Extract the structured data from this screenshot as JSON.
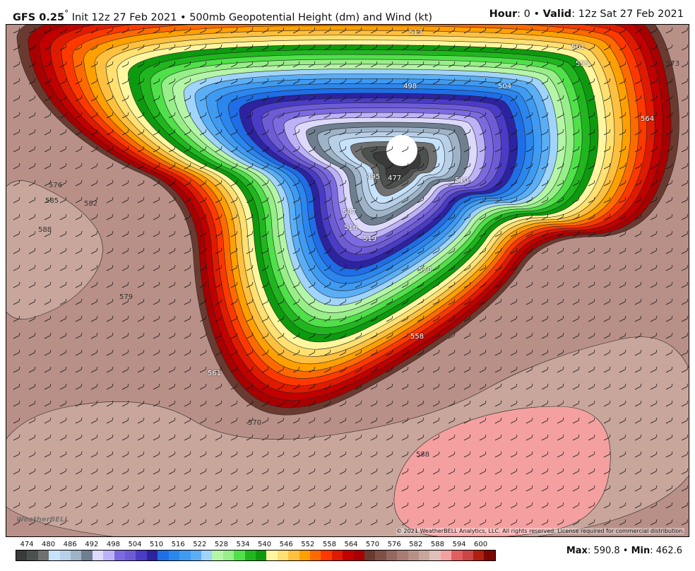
{
  "header": {
    "model": "GFS 0.25",
    "degree": "°",
    "init": " Init 12z 27 Feb 2021 • 500mb Geopotential Height (dm) and Wind (kt)",
    "hour_label": "Hour",
    "hour": ": 0 • ",
    "valid_label": "Valid",
    "valid": ": 12z Sat 27 Feb 2021"
  },
  "map": {
    "copyright": "© 2021 WeatherBELL Analytics, LLC. All rights reserved. License required for commercial distribution.",
    "logo": "WeatherBELL",
    "contour_labels": [
      "588",
      "585",
      "582",
      "576",
      "579",
      "570",
      "561",
      "558",
      "573",
      "564",
      "561",
      "555",
      "507",
      "516",
      "519",
      "495",
      "477",
      "504",
      "510",
      "513",
      "498",
      "570",
      "588"
    ],
    "low_center_color": "#ffffff"
  },
  "colorbar": {
    "labels": [
      "474",
      "480",
      "486",
      "492",
      "498",
      "504",
      "510",
      "516",
      "522",
      "528",
      "534",
      "540",
      "546",
      "552",
      "558",
      "564",
      "570",
      "576",
      "582",
      "588",
      "594",
      "600"
    ],
    "colors": [
      "#3a3a3a",
      "#4c514e",
      "#707070",
      "#c7e2fb",
      "#b8cfe8",
      "#9fb3c8",
      "#6f7f90",
      "#ddd9fb",
      "#bdb2f7",
      "#7b6ae0",
      "#6e5cd6",
      "#4a3cc6",
      "#2d22a0",
      "#1f6ee8",
      "#2b86ee",
      "#3f9af2",
      "#5aaef5",
      "#a0d4fa",
      "#b5f5a8",
      "#98ee88",
      "#50e04a",
      "#21b61f",
      "#0d9a0e",
      "#fff7a0",
      "#ffe070",
      "#ffc040",
      "#ffa000",
      "#ff6a00",
      "#ff3800",
      "#e01a00",
      "#c20000",
      "#a80000",
      "#6a3a30",
      "#7e5048",
      "#946860",
      "#a87c74",
      "#b89088",
      "#c8a69c",
      "#e0c0b8",
      "#f4a0a0",
      "#e06060",
      "#cc4444",
      "#b02010",
      "#7a0800"
    ]
  },
  "stats": {
    "max_label": "Max",
    "max": ": 590.8 • ",
    "min_label": "Min",
    "min": ": 462.6"
  }
}
